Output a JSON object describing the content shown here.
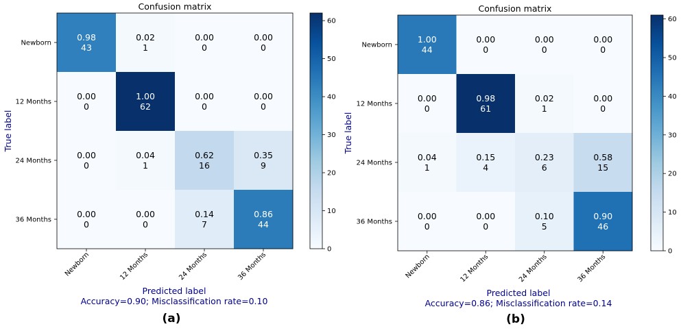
{
  "chart_data": [
    {
      "type": "heatmap",
      "panel_label": "(a)",
      "title": "Confusion matrix",
      "xlabel": "Predicted label",
      "ylabel": "True label",
      "summary": "Accuracy=0.90; Misclassification rate=0.10",
      "categories": [
        "Newborn",
        "12 Months",
        "24 Months",
        "36 Months"
      ],
      "normalized": [
        [
          "0.98",
          "0.02",
          "0.00",
          "0.00"
        ],
        [
          "0.00",
          "1.00",
          "0.00",
          "0.00"
        ],
        [
          "0.00",
          "0.04",
          "0.62",
          "0.35"
        ],
        [
          "0.00",
          "0.00",
          "0.14",
          "0.86"
        ]
      ],
      "counts": [
        [
          43,
          1,
          0,
          0
        ],
        [
          0,
          62,
          0,
          0
        ],
        [
          0,
          1,
          16,
          9
        ],
        [
          0,
          0,
          7,
          44
        ]
      ],
      "colorbar": {
        "min": 0,
        "max": 62,
        "ticks": [
          0,
          10,
          20,
          30,
          40,
          50,
          60
        ]
      },
      "colormap": [
        "#f7fbff",
        "#deebf7",
        "#c6dbef",
        "#9ecae1",
        "#6baed6",
        "#4292c6",
        "#2171b5",
        "#08519c",
        "#08306b"
      ]
    },
    {
      "type": "heatmap",
      "panel_label": "(b)",
      "title": "Confusion matrix",
      "xlabel": "Predicted label",
      "ylabel": "True label",
      "summary": "Accuracy=0.86; Misclassification rate=0.14",
      "categories": [
        "Newborn",
        "12 Months",
        "24 Months",
        "36 Months"
      ],
      "normalized": [
        [
          "1.00",
          "0.00",
          "0.00",
          "0.00"
        ],
        [
          "0.00",
          "0.98",
          "0.02",
          "0.00"
        ],
        [
          "0.04",
          "0.15",
          "0.23",
          "0.58"
        ],
        [
          "0.00",
          "0.00",
          "0.10",
          "0.90"
        ]
      ],
      "counts": [
        [
          44,
          0,
          0,
          0
        ],
        [
          0,
          61,
          1,
          0
        ],
        [
          1,
          4,
          6,
          15
        ],
        [
          0,
          0,
          5,
          46
        ]
      ],
      "colorbar": {
        "min": 0,
        "max": 61,
        "ticks": [
          0,
          10,
          20,
          30,
          40,
          50,
          60
        ]
      },
      "colormap": [
        "#f7fbff",
        "#deebf7",
        "#c6dbef",
        "#9ecae1",
        "#6baed6",
        "#4292c6",
        "#2171b5",
        "#08519c",
        "#08306b"
      ]
    }
  ],
  "style": {
    "label_color": "#00008b",
    "text_dark": "#000000",
    "text_light": "#ffffff"
  }
}
